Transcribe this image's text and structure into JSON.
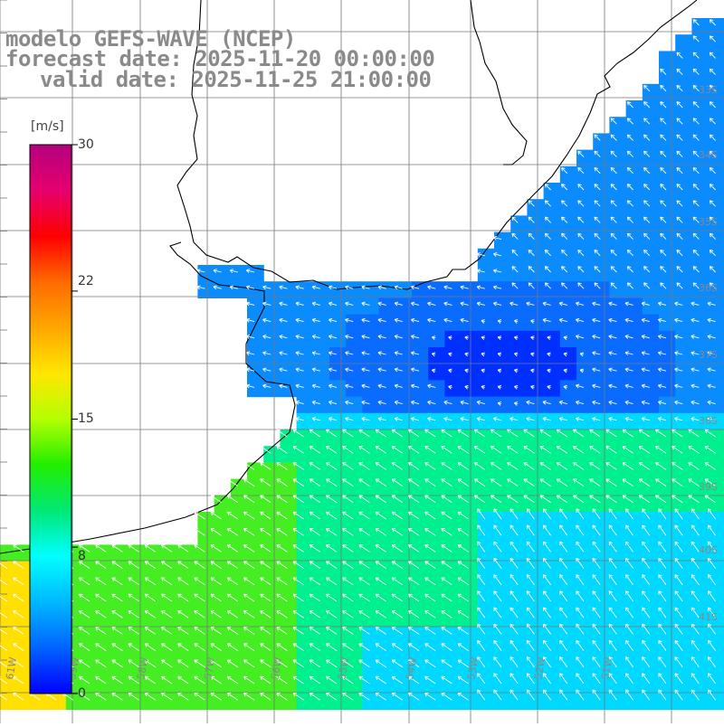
{
  "map": {
    "title_line1": "modelo GEFS-WAVE (NCEP)",
    "title_line2": "forecast date: 2025-11-20 00:00:00",
    "title_line3": "valid date: 2025-11-25 21:00:00"
  },
  "colorbar": {
    "unit": "[m/s]",
    "ticks": [
      "30",
      "22",
      "15",
      "8",
      "0"
    ],
    "tick_values": [
      30,
      22,
      15,
      8,
      0
    ],
    "colors": [
      "#b4007f",
      "#e6006e",
      "#ff0000",
      "#ff6a00",
      "#ffa600",
      "#ffe600",
      "#b4ff00",
      "#22ee00",
      "#00e876",
      "#00ffff",
      "#00b8ff",
      "#0064ff",
      "#0000ff"
    ]
  },
  "lon_labels": [
    "61W",
    "59W",
    "58W",
    "57W",
    "56W",
    "55W",
    "54W",
    "53W",
    "52W",
    "51W"
  ],
  "lat_labels": [
    "33S",
    "34S",
    "35S",
    "36S",
    "37S",
    "38S",
    "39S",
    "40S",
    "41S"
  ],
  "field_colors": {
    "calm": "#0030ff",
    "low": "#0a8cff",
    "mid": "#00d8ff",
    "high": "#00f090",
    "strong": "#44ee22",
    "max": "#ffe000"
  }
}
